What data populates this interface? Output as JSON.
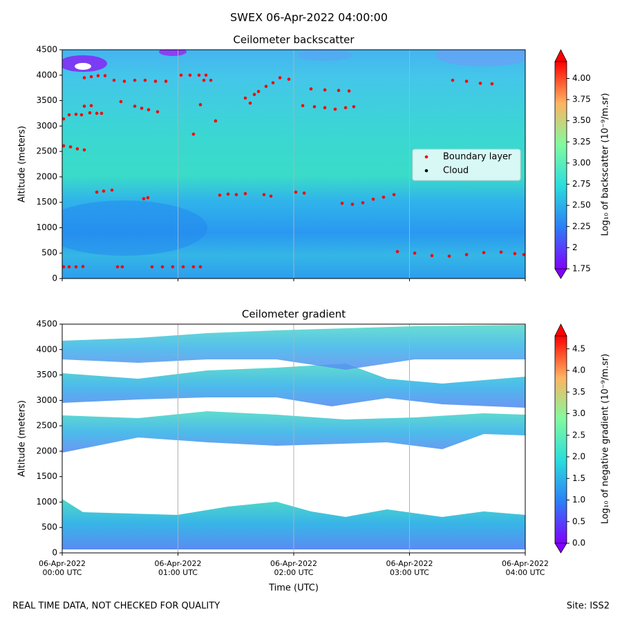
{
  "figure": {
    "title": "SWEX 06-Apr-2022 04:00:00",
    "footer_left": "REAL TIME DATA, NOT CHECKED FOR QUALITY",
    "footer_right": "Site: ISS2"
  },
  "chart_data": [
    {
      "type": "scatter",
      "title": "Ceilometer backscatter",
      "ylabel": "Altitude (meters)",
      "xlim": [
        0,
        4
      ],
      "xticks": [
        0,
        1,
        2,
        3,
        4
      ],
      "ylim": [
        0,
        4500
      ],
      "yticks": [
        0,
        500,
        1000,
        1500,
        2000,
        2500,
        3000,
        3500,
        4000,
        4500
      ],
      "grid": "x",
      "legend": "center right",
      "series": [
        {
          "name": "Boundary layer",
          "color": "#ff0000",
          "x": [
            0.012,
            0.06,
            0.119,
            0.179,
            0.012,
            0.072,
            0.131,
            0.191,
            0.012,
            0.06,
            0.119,
            0.167,
            0.191,
            0.251,
            0.239,
            0.299,
            0.34,
            0.191,
            0.251,
            0.31,
            0.37,
            0.299,
            0.358,
            0.43,
            0.478,
            0.519,
            0.448,
            0.537,
            0.627,
            0.716,
            0.806,
            0.896,
            0.507,
            0.627,
            0.687,
            0.746,
            0.824,
            0.704,
            0.74,
            0.776,
            0.866,
            0.955,
            1.045,
            1.134,
            1.194,
            1.027,
            1.104,
            1.182,
            1.242,
            1.134,
            1.194,
            1.224,
            1.284,
            1.325,
            1.361,
            1.433,
            1.504,
            1.582,
            1.582,
            1.624,
            1.66,
            1.696,
            1.743,
            1.803,
            1.761,
            1.821,
            1.881,
            1.958,
            2.018,
            2.09,
            2.078,
            2.179,
            2.269,
            2.358,
            2.448,
            2.519,
            2.149,
            2.269,
            2.388,
            2.478,
            2.418,
            2.507,
            2.597,
            2.687,
            2.776,
            2.866,
            2.896,
            3.045,
            3.194,
            3.343,
            3.493,
            3.642,
            3.791,
            3.91,
            3.988,
            3.373,
            3.493,
            3.612,
            3.713
          ],
          "y": [
            230,
            230,
            230,
            235,
            2610,
            2590,
            2550,
            2530,
            3140,
            3220,
            3230,
            3220,
            3390,
            3400,
            3260,
            3250,
            3250,
            3950,
            3970,
            3990,
            3990,
            1700,
            1720,
            1740,
            230,
            230,
            3900,
            3880,
            3900,
            3900,
            3880,
            3880,
            3480,
            3390,
            3350,
            3320,
            3280,
            1570,
            1590,
            230,
            230,
            230,
            230,
            230,
            230,
            4000,
            4000,
            4000,
            4000,
            2840,
            3420,
            3900,
            3900,
            3100,
            1640,
            1660,
            1650,
            1670,
            3550,
            3450,
            3620,
            3680,
            1650,
            1620,
            3780,
            3850,
            3950,
            3920,
            1700,
            1680,
            3400,
            3380,
            3360,
            3330,
            3360,
            3380,
            3730,
            3710,
            3700,
            3690,
            1480,
            1460,
            1490,
            1560,
            1600,
            1650,
            530,
            500,
            450,
            440,
            470,
            510,
            520,
            490,
            470,
            3900,
            3880,
            3840,
            3830
          ]
        },
        {
          "name": "Cloud",
          "color": "#000000",
          "x": [],
          "y": []
        }
      ],
      "colorbar": {
        "label": "Log₁₀ of backscatter (10⁻⁹/m.sr)",
        "lim": [
          1.75,
          4.2
        ],
        "ticks": [
          1.75,
          2.0,
          {
            "value": 2.25,
            "label": "2.25"
          },
          {
            "value": 2.5,
            "label": "2.50"
          },
          2.75,
          {
            "value": 3,
            "label": "3.00"
          },
          3.25,
          {
            "value": 3.5,
            "label": "3.50"
          },
          3.75,
          {
            "value": 4,
            "label": "4.00"
          }
        ]
      }
    },
    {
      "type": "heatmap",
      "title": "Ceilometer gradient",
      "ylabel": "Altitude (meters)",
      "xlabel": "Time (UTC)",
      "xlim": [
        0,
        4
      ],
      "xticks": [
        {
          "value": 0,
          "label": "06-Apr-2022\n00:00 UTC"
        },
        {
          "value": 1,
          "label": "06-Apr-2022\n01:00 UTC"
        },
        {
          "value": 2,
          "label": "06-Apr-2022\n02:00 UTC"
        },
        {
          "value": 3,
          "label": "06-Apr-2022\n03:00 UTC"
        },
        {
          "value": 4,
          "label": "06-Apr-2022\n04:00 UTC"
        }
      ],
      "ylim": [
        0,
        4500
      ],
      "yticks": [
        0,
        500,
        1000,
        1500,
        2000,
        2500,
        3000,
        3500,
        4000,
        4500
      ],
      "grid": "x",
      "colorbar": {
        "label": "Log₁₀ of negative gradient (10⁻⁹/m.sr)",
        "lim": [
          0,
          4.8
        ],
        "ticks": [
          {
            "value": 0,
            "label": "0.0"
          },
          0.5,
          {
            "value": 1,
            "label": "1.0"
          },
          1.5,
          {
            "value": 2,
            "label": "2.0"
          },
          2.5,
          {
            "value": 3,
            "label": "3.0"
          },
          3.5,
          {
            "value": 4,
            "label": "4.0"
          },
          4.5
        ]
      }
    }
  ]
}
